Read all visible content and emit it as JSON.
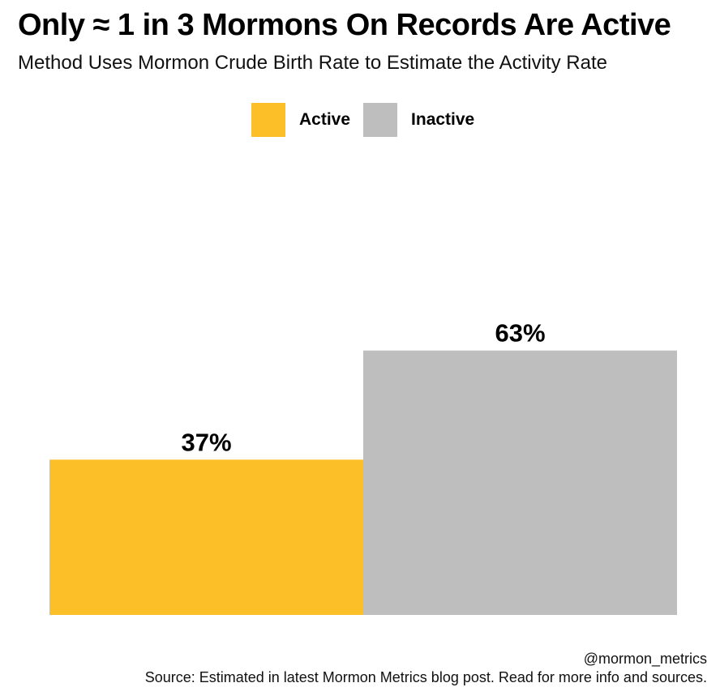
{
  "chart_data": {
    "type": "bar",
    "title": "Only ≈ 1 in 3 Mormons On Records Are Active",
    "subtitle": "Method Uses Mormon Crude Birth Rate to Estimate the Activity Rate",
    "categories": [
      "Active",
      "Inactive"
    ],
    "values": [
      37,
      63
    ],
    "value_labels": [
      "37%",
      "63%"
    ],
    "colors": [
      "#FDBF27",
      "#BEBEBE"
    ],
    "legend": {
      "placement": "top-center",
      "entries": [
        {
          "label": "Active",
          "color": "#FDBF27"
        },
        {
          "label": "Inactive",
          "color": "#BEBEBE"
        }
      ]
    },
    "xlabel": "",
    "ylabel": "",
    "ylim": [
      0,
      100
    ],
    "grid": false
  },
  "footer": {
    "handle": "@mormon_metrics",
    "source": "Source: Estimated in latest Mormon Metrics blog post. Read for more info and sources."
  }
}
